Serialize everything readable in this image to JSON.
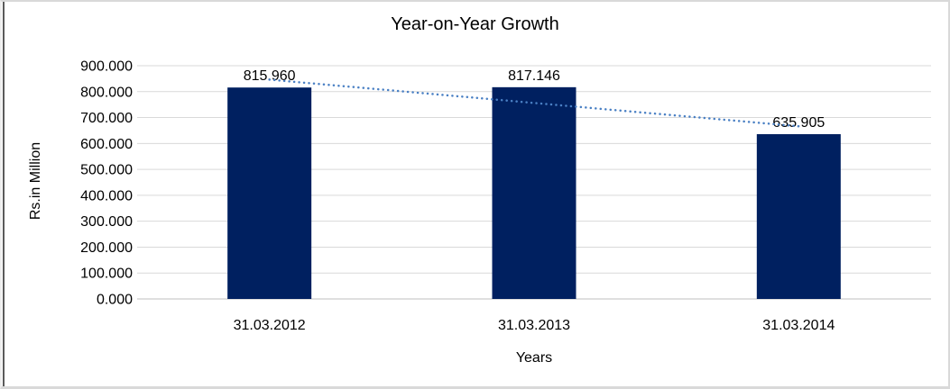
{
  "chart_data": {
    "type": "bar",
    "title": "Year-on-Year Growth",
    "xlabel": "Years",
    "ylabel": "Rs.in Million",
    "categories": [
      "31.03.2012",
      "31.03.2013",
      "31.03.2014"
    ],
    "values": [
      815.96,
      817.146,
      635.905
    ],
    "value_labels": [
      "815.960",
      "817.146",
      "635.905"
    ],
    "ylim": [
      0,
      900
    ],
    "ytick_step": 100,
    "ytick_labels": [
      "0.000",
      "100.000",
      "200.000",
      "300.000",
      "400.000",
      "500.000",
      "600.000",
      "700.000",
      "800.000",
      "900.000"
    ],
    "grid": "horizontal",
    "legend": "none",
    "trendline": {
      "type": "linear",
      "style": "dotted"
    },
    "colors": {
      "bar": "#002060",
      "trendline": "#4a80c4",
      "gridline": "#d9d9d9",
      "axis_line": "#bfbfbf",
      "text": "#000000",
      "frame_border": "#d9d9d9"
    }
  }
}
